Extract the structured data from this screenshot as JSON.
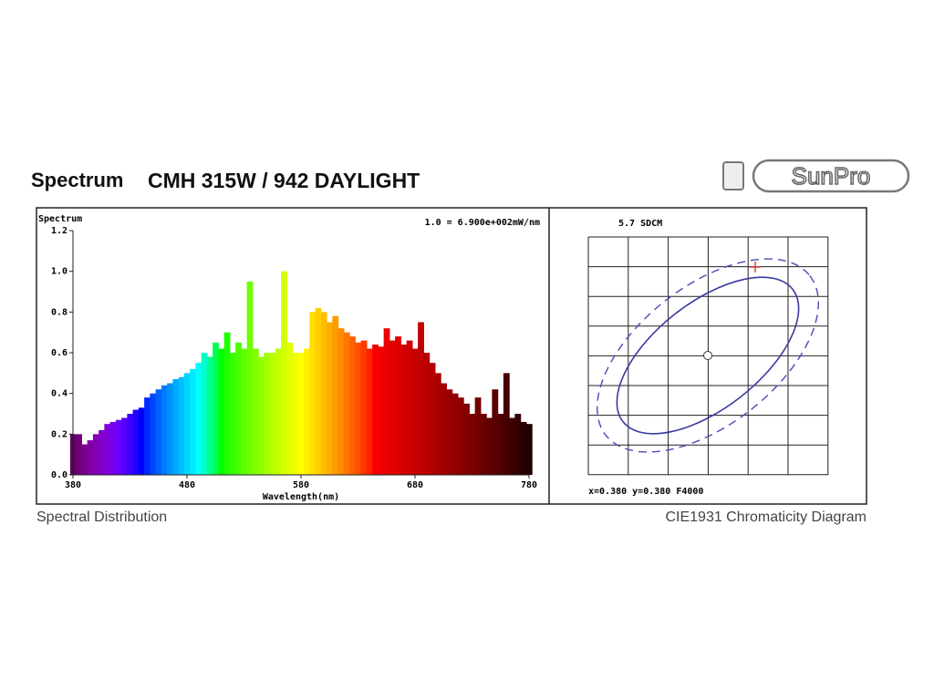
{
  "header": {
    "title": "Spectrum",
    "subtitle": "CMH 315W / 942 DAYLIGHT",
    "logo": "SunPro"
  },
  "chart_data": {
    "type": "area",
    "y_label": "Spectrum",
    "annotation": "1.0 = 6.900e+002mW/nm",
    "x_label": "Wavelength(nm)",
    "caption": "Spectral Distribution",
    "x": [
      380,
      385,
      390,
      395,
      400,
      405,
      410,
      415,
      420,
      425,
      430,
      435,
      440,
      445,
      450,
      455,
      460,
      465,
      470,
      475,
      480,
      485,
      490,
      495,
      500,
      505,
      510,
      515,
      520,
      525,
      530,
      535,
      540,
      545,
      550,
      555,
      560,
      565,
      570,
      575,
      580,
      585,
      590,
      595,
      600,
      605,
      610,
      615,
      620,
      625,
      630,
      635,
      640,
      645,
      650,
      655,
      660,
      665,
      670,
      675,
      680,
      685,
      690,
      695,
      700,
      705,
      710,
      715,
      720,
      725,
      730,
      735,
      740,
      745,
      750,
      755,
      760,
      765,
      770,
      775,
      780
    ],
    "values": [
      0.2,
      0.2,
      0.15,
      0.17,
      0.2,
      0.22,
      0.25,
      0.26,
      0.27,
      0.28,
      0.3,
      0.32,
      0.33,
      0.38,
      0.4,
      0.42,
      0.44,
      0.45,
      0.47,
      0.48,
      0.5,
      0.52,
      0.55,
      0.6,
      0.58,
      0.65,
      0.62,
      0.7,
      0.6,
      0.65,
      0.62,
      0.95,
      0.62,
      0.58,
      0.6,
      0.6,
      0.62,
      1.0,
      0.65,
      0.6,
      0.6,
      0.62,
      0.8,
      0.82,
      0.8,
      0.75,
      0.78,
      0.72,
      0.7,
      0.68,
      0.65,
      0.66,
      0.62,
      0.64,
      0.63,
      0.72,
      0.66,
      0.68,
      0.64,
      0.66,
      0.62,
      0.75,
      0.6,
      0.55,
      0.5,
      0.45,
      0.42,
      0.4,
      0.38,
      0.35,
      0.3,
      0.38,
      0.3,
      0.28,
      0.42,
      0.3,
      0.5,
      0.28,
      0.3,
      0.26,
      0.25
    ],
    "xlim": [
      380,
      780
    ],
    "xticks": [
      380,
      480,
      580,
      680,
      780
    ],
    "ylim": [
      0,
      1.2
    ],
    "yticks": [
      {
        "value": 0,
        "label": "0.0"
      },
      0.2,
      0.4,
      0.6,
      0.8,
      {
        "value": 1,
        "label": "1.0"
      },
      1.2
    ]
  },
  "chromaticity": {
    "sdcm": "5.7 SDCM",
    "coords": "x=0.380 y=0.380 F4000",
    "caption": "CIE1931 Chromaticity Diagram"
  }
}
